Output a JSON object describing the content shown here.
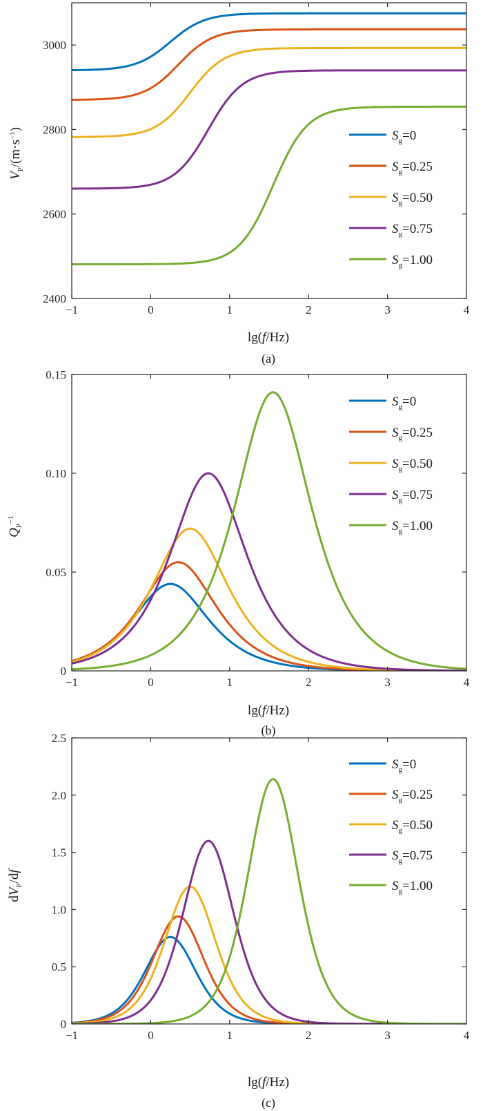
{
  "figure": {
    "series_labels": [
      "=0",
      "=0.25",
      "=0.50",
      "=0.75",
      "=1.00"
    ],
    "legend_symbol": "S",
    "legend_subscript": "g",
    "series_colors": [
      "#0072BD",
      "#D95319",
      "#EDB120",
      "#7E2F8E",
      "#77AC30"
    ]
  },
  "chart_data": [
    {
      "type": "line",
      "caption": "(a)",
      "xlabel": "lg(f/Hz)",
      "ylabel": "Vp/(m·s⁻¹)",
      "xlim": [
        -1,
        4
      ],
      "ylim": [
        2400,
        3100
      ],
      "xticks": [
        -1,
        0,
        1,
        2,
        3,
        4
      ],
      "xtick_labels": [
        "−1",
        "0",
        "1",
        "2",
        "3",
        "4"
      ],
      "yticks": [
        2400,
        2600,
        2800,
        3000
      ],
      "ytick_labels": [
        "2400",
        "2600",
        "2800",
        "3000"
      ],
      "legend_position": "right",
      "series": [
        {
          "name": "Sg=0",
          "color": "#0072BD",
          "low": 2940,
          "high": 3075,
          "center": 0.25
        },
        {
          "name": "Sg=0.25",
          "color": "#D95319",
          "low": 2870,
          "high": 3037,
          "center": 0.35
        },
        {
          "name": "Sg=0.50",
          "color": "#EDB120",
          "low": 2782,
          "high": 2993,
          "center": 0.5
        },
        {
          "name": "Sg=0.75",
          "color": "#7E2F8E",
          "low": 2660,
          "high": 2940,
          "center": 0.73
        },
        {
          "name": "Sg=1.00",
          "color": "#77AC30",
          "low": 2481,
          "high": 2854,
          "center": 1.55
        }
      ]
    },
    {
      "type": "line",
      "caption": "(b)",
      "xlabel": "lg(f/Hz)",
      "ylabel": "Qp⁻¹",
      "xlim": [
        -1,
        4
      ],
      "ylim": [
        0,
        0.15
      ],
      "xticks": [
        -1,
        0,
        1,
        2,
        3,
        4
      ],
      "xtick_labels": [
        "−1",
        "0",
        "1",
        "2",
        "3",
        "4"
      ],
      "yticks": [
        0,
        0.05,
        0.1,
        0.15
      ],
      "ytick_labels": [
        "0",
        "0.05",
        "0.10",
        "0.15"
      ],
      "legend_position": "top-right",
      "series": [
        {
          "name": "Sg=0",
          "color": "#0072BD",
          "peak": 0.044,
          "center": 0.25
        },
        {
          "name": "Sg=0.25",
          "color": "#D95319",
          "peak": 0.055,
          "center": 0.35
        },
        {
          "name": "Sg=0.50",
          "color": "#EDB120",
          "peak": 0.072,
          "center": 0.5
        },
        {
          "name": "Sg=0.75",
          "color": "#7E2F8E",
          "peak": 0.1,
          "center": 0.73
        },
        {
          "name": "Sg=1.00",
          "color": "#77AC30",
          "peak": 0.141,
          "center": 1.55
        }
      ]
    },
    {
      "type": "line",
      "caption": "(c)",
      "xlabel": "lg(f/Hz)",
      "ylabel": "dVp/df",
      "xlim": [
        -1,
        4
      ],
      "ylim": [
        0,
        2.5
      ],
      "xticks": [
        -1,
        0,
        1,
        2,
        3,
        4
      ],
      "xtick_labels": [
        "−1",
        "0",
        "1",
        "2",
        "3",
        "4"
      ],
      "yticks": [
        0,
        0.5,
        1.0,
        1.5,
        2.0,
        2.5
      ],
      "ytick_labels": [
        "0",
        "0.5",
        "1.0",
        "1.5",
        "2.0",
        "2.5"
      ],
      "legend_position": "top-right",
      "series": [
        {
          "name": "Sg=0",
          "color": "#0072BD",
          "peak": 0.76,
          "center": 0.25
        },
        {
          "name": "Sg=0.25",
          "color": "#D95319",
          "peak": 0.94,
          "center": 0.35
        },
        {
          "name": "Sg=0.50",
          "color": "#EDB120",
          "peak": 1.2,
          "center": 0.5
        },
        {
          "name": "Sg=0.75",
          "color": "#7E2F8E",
          "peak": 1.6,
          "center": 0.73
        },
        {
          "name": "Sg=1.00",
          "color": "#77AC30",
          "peak": 2.14,
          "center": 1.55
        }
      ]
    }
  ]
}
